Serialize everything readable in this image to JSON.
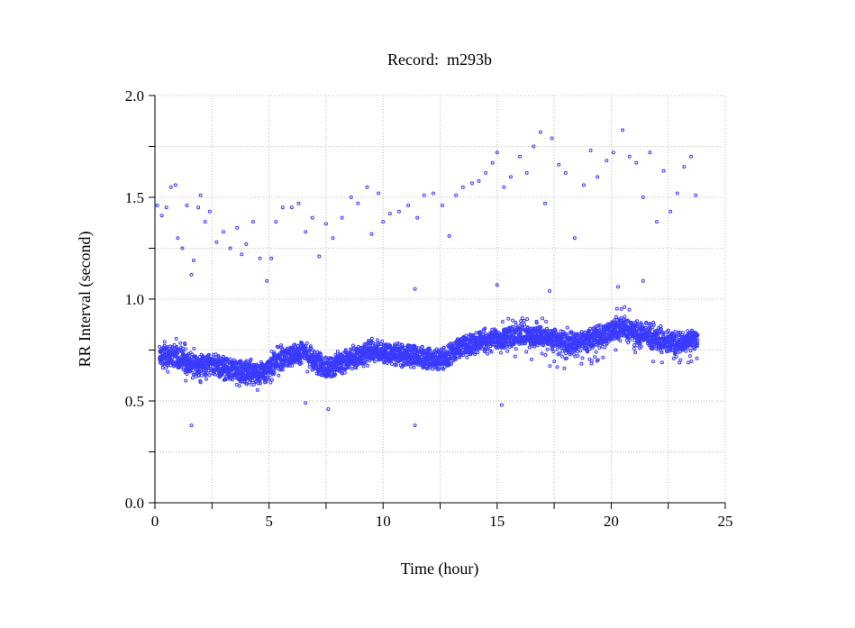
{
  "chart_data": {
    "type": "scatter",
    "title": "Record:  m293b",
    "xlabel": "Time (hour)",
    "ylabel": "RR Interval (second)",
    "xlim": [
      0,
      25
    ],
    "ylim": [
      0,
      2.0
    ],
    "x_ticks": [
      "0",
      "5",
      "10",
      "15",
      "20",
      "25"
    ],
    "x_tick_values": [
      0,
      5,
      10,
      15,
      20,
      25
    ],
    "y_ticks": [
      "0.0",
      "0.5",
      "1.0",
      "1.5",
      "2.0"
    ],
    "y_tick_values": [
      0,
      0.5,
      1.0,
      1.5,
      2.0
    ],
    "grid": true,
    "marker_color": "#3a3aff",
    "dense_band": {
      "description_hours": [
        0.2,
        1,
        1.5,
        2.5,
        3.5,
        4.5,
        5.5,
        6.5,
        7.5,
        8.5,
        9.5,
        10.5,
        11.5,
        12.5,
        13.5,
        14.5,
        15.5,
        16.5,
        17.5,
        18.5,
        19.5,
        20.5,
        21.5,
        22.5,
        23.5,
        23.8
      ],
      "center": [
        0.72,
        0.72,
        0.68,
        0.68,
        0.65,
        0.63,
        0.7,
        0.74,
        0.66,
        0.7,
        0.75,
        0.73,
        0.72,
        0.7,
        0.77,
        0.8,
        0.82,
        0.82,
        0.8,
        0.78,
        0.82,
        0.86,
        0.82,
        0.78,
        0.8,
        0.8
      ],
      "low": [
        0.6,
        0.64,
        0.54,
        0.62,
        0.58,
        0.55,
        0.62,
        0.65,
        0.6,
        0.64,
        0.68,
        0.67,
        0.66,
        0.64,
        0.7,
        0.73,
        0.72,
        0.7,
        0.65,
        0.65,
        0.7,
        0.75,
        0.72,
        0.62,
        0.68,
        0.7
      ],
      "high": [
        0.8,
        0.81,
        0.78,
        0.75,
        0.72,
        0.7,
        0.78,
        0.8,
        0.72,
        0.77,
        0.8,
        0.78,
        0.77,
        0.76,
        0.82,
        0.86,
        0.92,
        0.95,
        0.88,
        0.85,
        0.9,
        1.0,
        0.9,
        0.88,
        0.88,
        0.86
      ]
    },
    "upper_points": [
      [
        0.1,
        1.46
      ],
      [
        0.3,
        1.41
      ],
      [
        0.5,
        1.45
      ],
      [
        0.7,
        1.55
      ],
      [
        0.9,
        1.56
      ],
      [
        1.0,
        1.3
      ],
      [
        1.2,
        1.25
      ],
      [
        1.4,
        1.46
      ],
      [
        1.6,
        1.12
      ],
      [
        1.7,
        1.19
      ],
      [
        1.9,
        1.45
      ],
      [
        2.0,
        1.51
      ],
      [
        2.2,
        1.38
      ],
      [
        2.4,
        1.43
      ],
      [
        2.7,
        1.28
      ],
      [
        3.0,
        1.33
      ],
      [
        3.3,
        1.25
      ],
      [
        3.6,
        1.35
      ],
      [
        3.8,
        1.22
      ],
      [
        4.0,
        1.27
      ],
      [
        4.3,
        1.38
      ],
      [
        4.6,
        1.2
      ],
      [
        4.9,
        1.09
      ],
      [
        5.1,
        1.2
      ],
      [
        5.3,
        1.38
      ],
      [
        5.6,
        1.45
      ],
      [
        6.0,
        1.45
      ],
      [
        6.3,
        1.47
      ],
      [
        6.6,
        1.33
      ],
      [
        6.9,
        1.4
      ],
      [
        7.2,
        1.21
      ],
      [
        7.5,
        1.37
      ],
      [
        7.8,
        1.3
      ],
      [
        8.2,
        1.4
      ],
      [
        8.6,
        1.5
      ],
      [
        8.9,
        1.47
      ],
      [
        9.3,
        1.55
      ],
      [
        9.5,
        1.32
      ],
      [
        9.8,
        1.52
      ],
      [
        10.0,
        1.38
      ],
      [
        10.3,
        1.42
      ],
      [
        10.7,
        1.43
      ],
      [
        11.1,
        1.46
      ],
      [
        11.5,
        1.4
      ],
      [
        11.8,
        1.51
      ],
      [
        12.2,
        1.52
      ],
      [
        12.6,
        1.46
      ],
      [
        12.9,
        1.31
      ],
      [
        13.2,
        1.51
      ],
      [
        13.5,
        1.55
      ],
      [
        13.9,
        1.57
      ],
      [
        14.2,
        1.58
      ],
      [
        14.5,
        1.62
      ],
      [
        14.8,
        1.67
      ],
      [
        15.0,
        1.72
      ],
      [
        15.3,
        1.55
      ],
      [
        15.6,
        1.6
      ],
      [
        16.0,
        1.7
      ],
      [
        16.3,
        1.62
      ],
      [
        16.6,
        1.75
      ],
      [
        16.9,
        1.82
      ],
      [
        17.1,
        1.47
      ],
      [
        17.4,
        1.79
      ],
      [
        17.7,
        1.66
      ],
      [
        18.0,
        1.62
      ],
      [
        18.4,
        1.3
      ],
      [
        18.8,
        1.56
      ],
      [
        19.1,
        1.73
      ],
      [
        19.4,
        1.6
      ],
      [
        19.8,
        1.68
      ],
      [
        20.1,
        1.72
      ],
      [
        20.5,
        1.83
      ],
      [
        20.8,
        1.7
      ],
      [
        21.1,
        1.67
      ],
      [
        21.4,
        1.5
      ],
      [
        21.7,
        1.72
      ],
      [
        22.0,
        1.38
      ],
      [
        22.3,
        1.63
      ],
      [
        22.6,
        1.43
      ],
      [
        22.9,
        1.52
      ],
      [
        23.2,
        1.65
      ],
      [
        23.5,
        1.7
      ],
      [
        23.7,
        1.51
      ]
    ],
    "outlier_points": [
      [
        1.6,
        0.38
      ],
      [
        6.6,
        0.49
      ],
      [
        7.6,
        0.46
      ],
      [
        11.4,
        0.38
      ],
      [
        15.2,
        0.48
      ],
      [
        11.4,
        1.05
      ],
      [
        15.0,
        1.07
      ],
      [
        21.4,
        1.09
      ],
      [
        17.3,
        1.04
      ],
      [
        20.3,
        1.06
      ]
    ]
  }
}
